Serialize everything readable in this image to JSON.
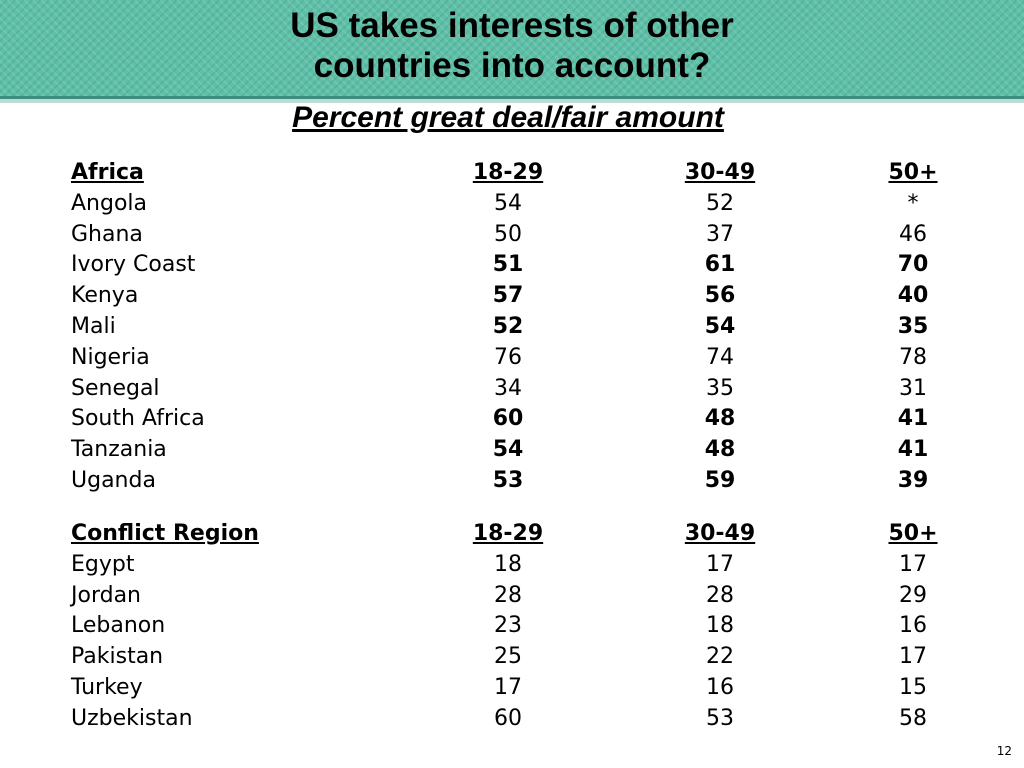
{
  "header": {
    "title_line1": "US takes interests of other",
    "title_line2": "countries into account?",
    "subtitle": "Percent great deal/fair amount"
  },
  "columns": [
    "18-29",
    "30-49",
    "50+"
  ],
  "africa": {
    "label": "Africa",
    "rows": [
      {
        "name": "Angola",
        "values": [
          "54",
          "52",
          "*"
        ],
        "bold": false
      },
      {
        "name": "Ghana",
        "values": [
          "50",
          "37",
          "46"
        ],
        "bold": false
      },
      {
        "name": "Ivory Coast",
        "values": [
          "51",
          "61",
          "70"
        ],
        "bold": true
      },
      {
        "name": "Kenya",
        "values": [
          "57",
          "56",
          "40"
        ],
        "bold": true
      },
      {
        "name": "Mali",
        "values": [
          "52",
          "54",
          "35"
        ],
        "bold": true
      },
      {
        "name": "Nigeria",
        "values": [
          "76",
          "74",
          "78"
        ],
        "bold": false
      },
      {
        "name": "Senegal",
        "values": [
          "34",
          "35",
          "31"
        ],
        "bold": false
      },
      {
        "name": "South Africa",
        "values": [
          "60",
          "48",
          "41"
        ],
        "bold": true
      },
      {
        "name": "Tanzania",
        "values": [
          "54",
          "48",
          "41"
        ],
        "bold": true
      },
      {
        "name": "Uganda",
        "values": [
          "53",
          "59",
          "39"
        ],
        "bold": true
      }
    ]
  },
  "conflict": {
    "label": "Conflict Region",
    "rows": [
      {
        "name": "Egypt",
        "values": [
          "18",
          "17",
          "17"
        ],
        "bold": false
      },
      {
        "name": "Jordan",
        "values": [
          "28",
          "28",
          "29"
        ],
        "bold": false
      },
      {
        "name": "Lebanon",
        "values": [
          "23",
          "18",
          "16"
        ],
        "bold": false
      },
      {
        "name": "Pakistan",
        "values": [
          "25",
          "22",
          "17"
        ],
        "bold": false
      },
      {
        "name": "Turkey",
        "values": [
          "17",
          "16",
          "15"
        ],
        "bold": false
      },
      {
        "name": "Uzbekistan",
        "values": [
          "60",
          "53",
          "58"
        ],
        "bold": false
      }
    ]
  },
  "page_number": "12"
}
